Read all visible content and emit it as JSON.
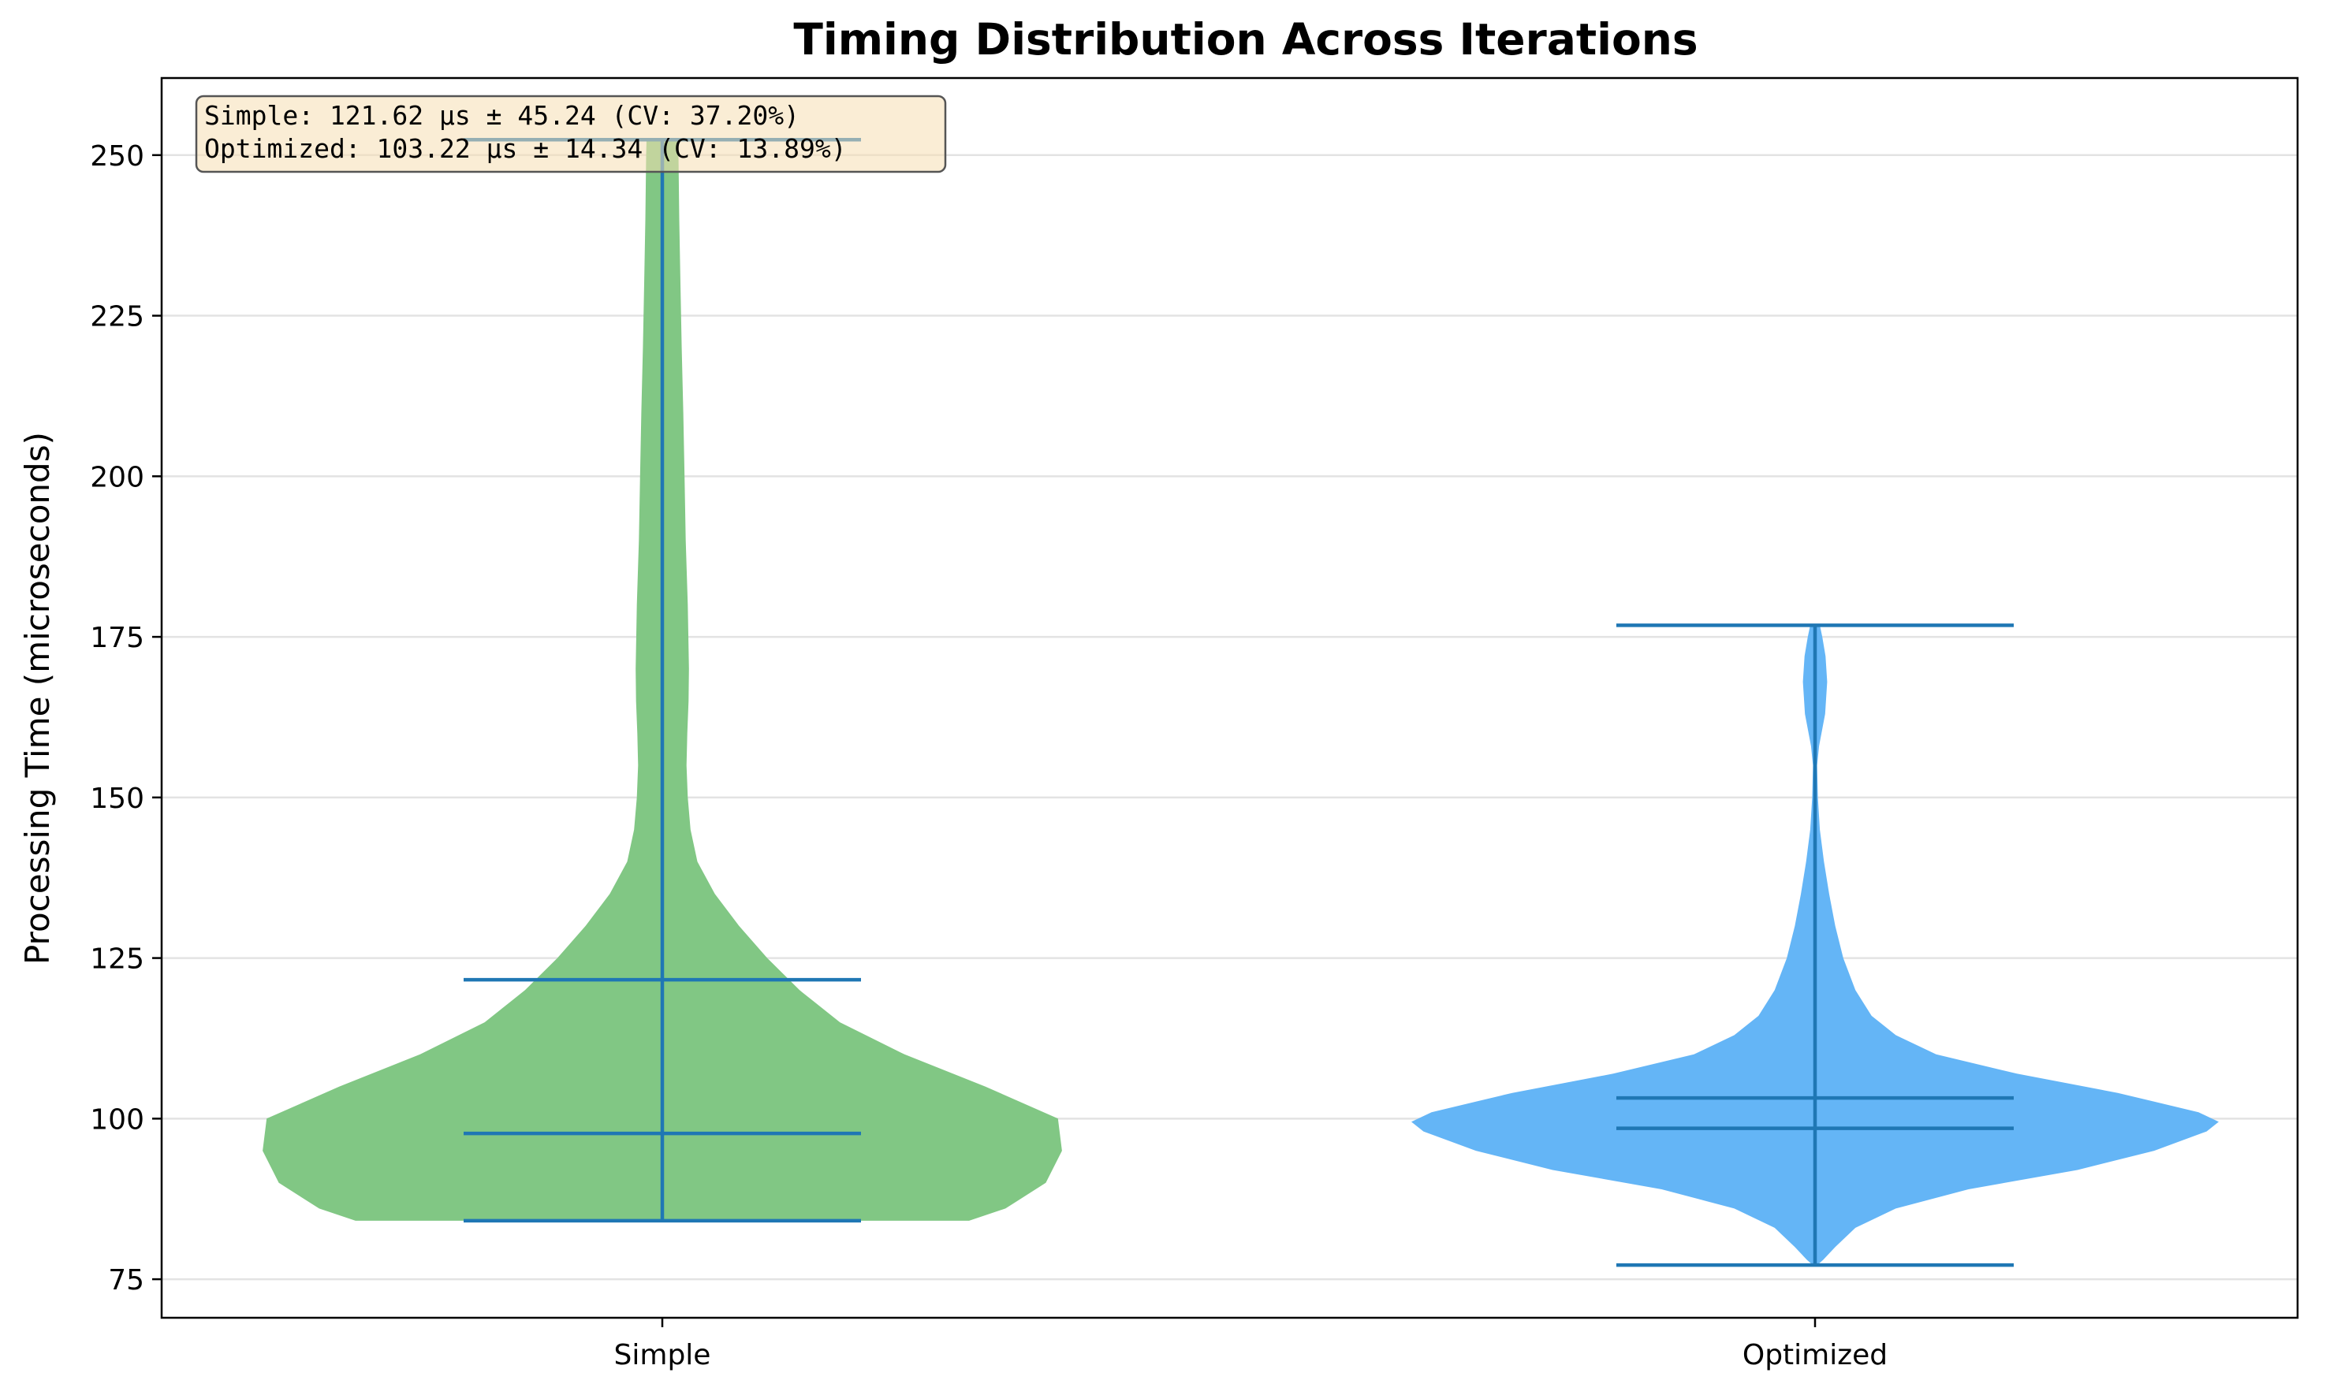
{
  "chart_data": {
    "type": "violin",
    "title": "Timing Distribution Across Iterations",
    "xlabel": "",
    "ylabel": "Processing Time (microseconds)",
    "ylim": [
      69,
      262
    ],
    "yticks": [
      75,
      100,
      125,
      150,
      175,
      200,
      225,
      250
    ],
    "grid": "y",
    "categories": [
      "Simple",
      "Optimized"
    ],
    "series": [
      {
        "name": "Simple",
        "color": "#81c784",
        "min": 84.1,
        "median": 97.7,
        "mean": 121.62,
        "max": 252.4,
        "density_profile": [
          [
            84.1,
            0.76
          ],
          [
            86,
            0.85
          ],
          [
            90,
            0.95
          ],
          [
            95,
            0.99
          ],
          [
            100,
            0.98
          ],
          [
            105,
            0.8
          ],
          [
            110,
            0.6
          ],
          [
            115,
            0.44
          ],
          [
            120,
            0.34
          ],
          [
            125,
            0.26
          ],
          [
            130,
            0.19
          ],
          [
            135,
            0.13
          ],
          [
            140,
            0.087
          ],
          [
            145,
            0.07
          ],
          [
            150,
            0.063
          ],
          [
            155,
            0.06
          ],
          [
            160,
            0.062
          ],
          [
            165,
            0.065
          ],
          [
            170,
            0.066
          ],
          [
            180,
            0.063
          ],
          [
            190,
            0.058
          ],
          [
            200,
            0.055
          ],
          [
            210,
            0.052
          ],
          [
            220,
            0.048
          ],
          [
            230,
            0.045
          ],
          [
            240,
            0.042
          ],
          [
            250,
            0.04
          ],
          [
            252.4,
            0.039
          ]
        ]
      },
      {
        "name": "Optimized",
        "color": "#64b5f6",
        "min": 77.2,
        "median": 98.5,
        "mean": 103.22,
        "max": 176.8,
        "density_profile": [
          [
            77.2,
            0.005
          ],
          [
            78,
            0.02
          ],
          [
            80,
            0.05
          ],
          [
            83,
            0.1
          ],
          [
            86,
            0.2
          ],
          [
            89,
            0.38
          ],
          [
            92,
            0.65
          ],
          [
            95,
            0.84
          ],
          [
            98,
            0.97
          ],
          [
            99.5,
            1.0
          ],
          [
            101,
            0.95
          ],
          [
            104,
            0.75
          ],
          [
            107,
            0.5
          ],
          [
            110,
            0.3
          ],
          [
            113,
            0.2
          ],
          [
            116,
            0.14
          ],
          [
            120,
            0.1
          ],
          [
            125,
            0.07
          ],
          [
            130,
            0.05
          ],
          [
            135,
            0.035
          ],
          [
            140,
            0.022
          ],
          [
            145,
            0.012
          ],
          [
            150,
            0.007
          ],
          [
            155,
            0.005
          ],
          [
            158,
            0.01
          ],
          [
            163,
            0.025
          ],
          [
            168,
            0.03
          ],
          [
            172,
            0.026
          ],
          [
            175,
            0.018
          ],
          [
            176.8,
            0.012
          ]
        ]
      }
    ],
    "stats_box": {
      "line1": "Simple: 121.62 µs ± 45.24 (CV: 37.20%)",
      "line2": "Optimized: 103.22 µs ± 14.34 (CV: 13.89%)"
    },
    "colors": {
      "whisker": "#1f77b4",
      "grid": "#e3e3e3",
      "stats_box_fill": "#f5deb3",
      "stats_box_border": "#555555"
    }
  }
}
